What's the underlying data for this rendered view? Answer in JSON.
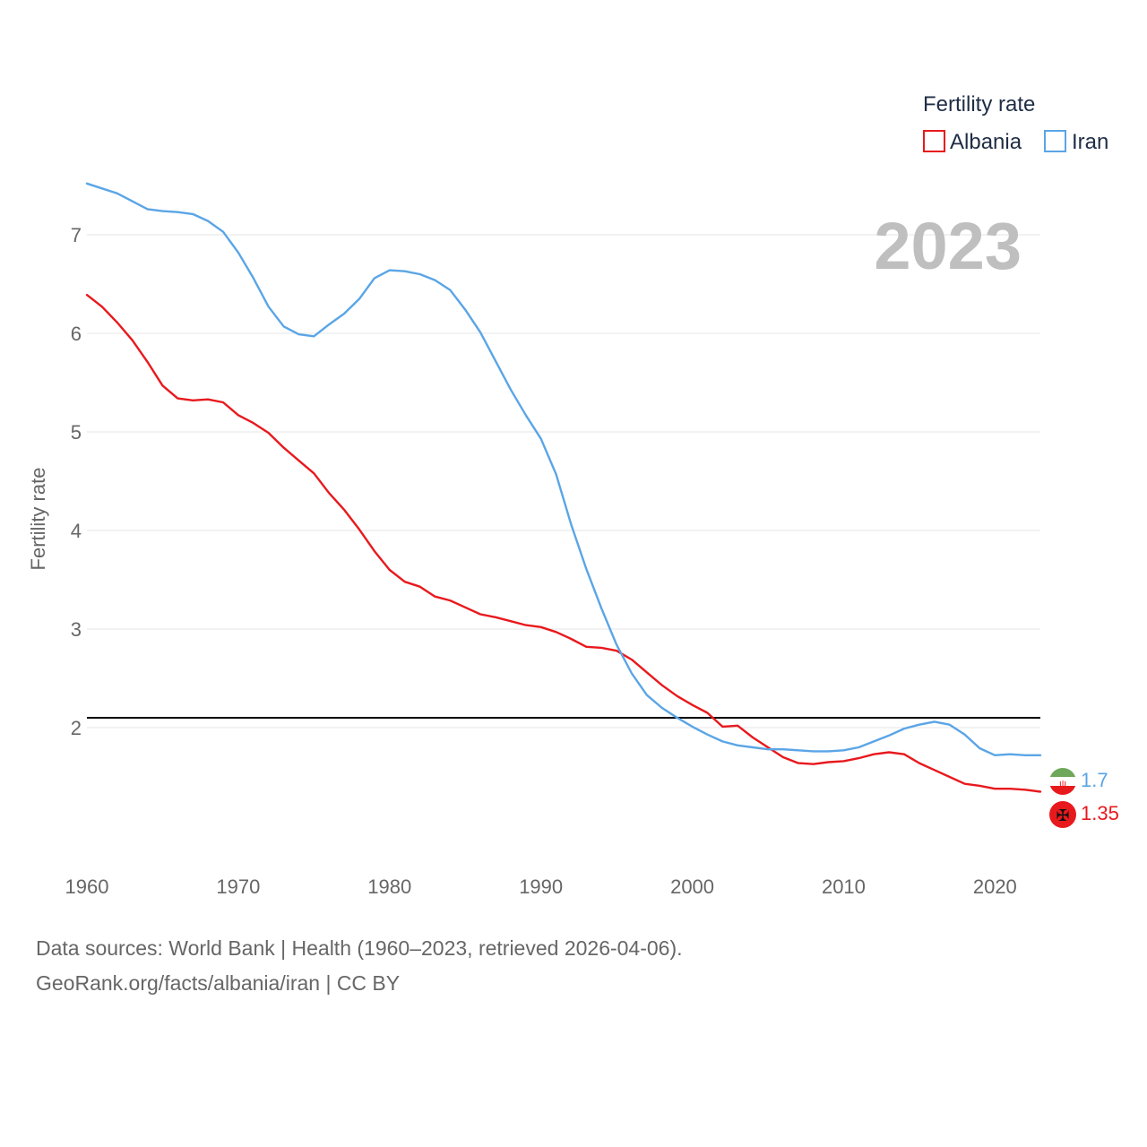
{
  "chart_data": {
    "type": "line",
    "xlabel": "",
    "ylabel": "Fertility rate",
    "xlim": [
      1960,
      2023
    ],
    "ylim": [
      0.8,
      7.6
    ],
    "x_ticks": [
      1960,
      1970,
      1980,
      1990,
      2000,
      2010,
      2020
    ],
    "y_ticks": [
      2,
      3,
      4,
      5,
      6,
      7
    ],
    "year_label": "2023",
    "legend_title": "Fertility rate",
    "legend_placement": "top-right",
    "reference_line": {
      "y": 2.1,
      "color": "#000000"
    },
    "x": [
      1960,
      1961,
      1962,
      1963,
      1964,
      1965,
      1966,
      1967,
      1968,
      1969,
      1970,
      1971,
      1972,
      1973,
      1974,
      1975,
      1976,
      1977,
      1978,
      1979,
      1980,
      1981,
      1982,
      1983,
      1984,
      1985,
      1986,
      1987,
      1988,
      1989,
      1990,
      1991,
      1992,
      1993,
      1994,
      1995,
      1996,
      1997,
      1998,
      1999,
      2000,
      2001,
      2002,
      2003,
      2004,
      2005,
      2006,
      2007,
      2008,
      2009,
      2010,
      2011,
      2012,
      2013,
      2014,
      2015,
      2016,
      2017,
      2018,
      2019,
      2020,
      2021,
      2022,
      2023
    ],
    "series": [
      {
        "name": "Albania",
        "color": "#e8191d",
        "end_label": "1.35",
        "values": [
          6.39,
          6.27,
          6.11,
          5.93,
          5.71,
          5.47,
          5.34,
          5.32,
          5.33,
          5.3,
          5.17,
          5.09,
          4.99,
          4.84,
          4.71,
          4.58,
          4.38,
          4.21,
          4.01,
          3.79,
          3.6,
          3.48,
          3.43,
          3.33,
          3.29,
          3.22,
          3.15,
          3.12,
          3.08,
          3.04,
          3.02,
          2.97,
          2.9,
          2.82,
          2.81,
          2.78,
          2.69,
          2.56,
          2.43,
          2.32,
          2.23,
          2.15,
          2.01,
          2.02,
          1.9,
          1.8,
          1.7,
          1.64,
          1.63,
          1.65,
          1.66,
          1.69,
          1.73,
          1.75,
          1.73,
          1.64,
          1.57,
          1.5,
          1.43,
          1.41,
          1.38,
          1.38,
          1.37,
          1.35
        ]
      },
      {
        "name": "Iran",
        "color": "#5aa5e6",
        "end_label": "1.7",
        "values": [
          7.52,
          7.47,
          7.42,
          7.34,
          7.26,
          7.24,
          7.23,
          7.21,
          7.14,
          7.03,
          6.82,
          6.56,
          6.27,
          6.07,
          5.99,
          5.97,
          6.09,
          6.2,
          6.35,
          6.56,
          6.64,
          6.63,
          6.6,
          6.54,
          6.44,
          6.24,
          6.01,
          5.72,
          5.43,
          5.17,
          4.93,
          4.57,
          4.06,
          3.61,
          3.21,
          2.84,
          2.55,
          2.33,
          2.2,
          2.1,
          2.01,
          1.93,
          1.86,
          1.82,
          1.8,
          1.78,
          1.78,
          1.77,
          1.76,
          1.76,
          1.77,
          1.8,
          1.86,
          1.92,
          1.99,
          2.03,
          2.06,
          2.03,
          1.93,
          1.79,
          1.72,
          1.73,
          1.72,
          1.72
        ]
      }
    ]
  },
  "footer": {
    "line1": "Data sources: World Bank | Health (1960–2023, retrieved 2026-04-06).",
    "line2": "GeoRank.org/facts/albania/iran | CC BY"
  }
}
